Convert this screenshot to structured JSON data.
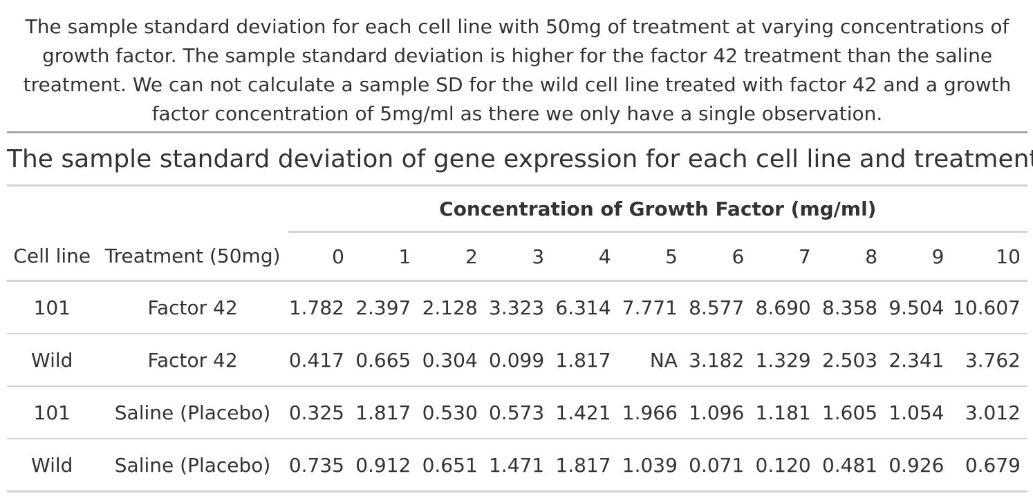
{
  "caption": "The sample standard deviation for each cell line with 50mg of treatment at varying concentrations of growth factor. The sample standard deviation is higher for the factor 42 treatment than the saline treatment. We can not calculate a sample SD for the wild cell line treated with factor 42 and a growth factor concentration of 5mg/ml as there we only have a single observation.",
  "table": {
    "title": "The sample standard deviation of gene expression for each cell line and treatment",
    "spanner": "Concentration of Growth Factor (mg/ml)",
    "headers": {
      "cell_line": "Cell line",
      "treatment": "Treatment (50mg)",
      "conc": [
        "0",
        "1",
        "2",
        "3",
        "4",
        "5",
        "6",
        "7",
        "8",
        "9",
        "10"
      ]
    },
    "rows": [
      {
        "cell_line": "101",
        "treatment": "Factor 42",
        "values": [
          "1.782",
          "2.397",
          "2.128",
          "3.323",
          "6.314",
          "7.771",
          "8.577",
          "8.690",
          "8.358",
          "9.504",
          "10.607"
        ]
      },
      {
        "cell_line": "Wild",
        "treatment": "Factor 42",
        "values": [
          "0.417",
          "0.665",
          "0.304",
          "0.099",
          "1.817",
          "NA",
          "3.182",
          "1.329",
          "2.503",
          "2.341",
          "3.762"
        ]
      },
      {
        "cell_line": "101",
        "treatment": "Saline (Placebo)",
        "values": [
          "0.325",
          "1.817",
          "0.530",
          "0.573",
          "1.421",
          "1.966",
          "1.096",
          "1.181",
          "1.605",
          "1.054",
          "3.012"
        ]
      },
      {
        "cell_line": "Wild",
        "treatment": "Saline (Placebo)",
        "values": [
          "0.735",
          "0.912",
          "0.651",
          "1.471",
          "1.817",
          "1.039",
          "0.071",
          "0.120",
          "0.481",
          "0.926",
          "0.679"
        ]
      }
    ]
  }
}
